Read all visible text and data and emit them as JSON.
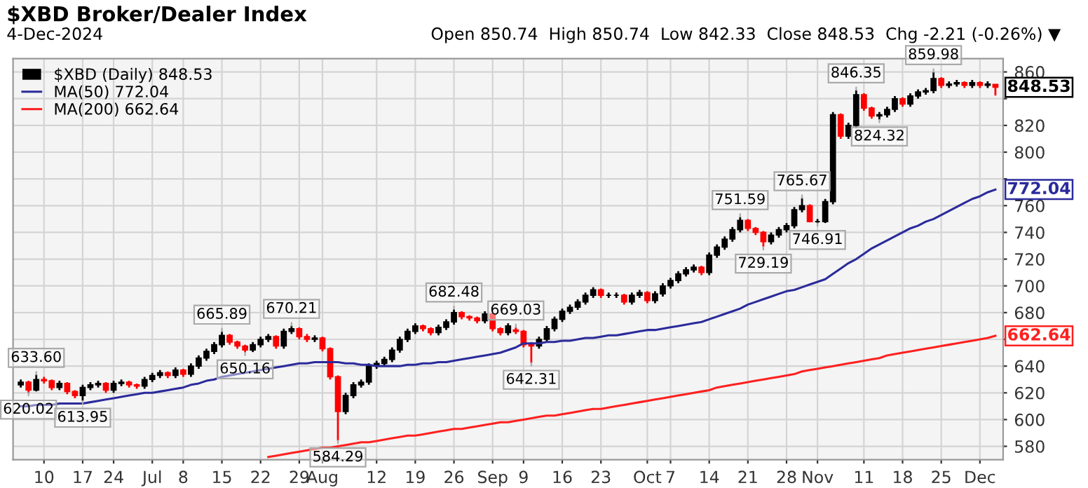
{
  "chart_data": {
    "type": "candlestick",
    "title": "$XBD Broker/Dealer Index",
    "subtitle": "4-Dec-2024",
    "categories": [
      null,
      null,
      null,
      "10",
      null,
      null,
      null,
      null,
      "17",
      null,
      null,
      null,
      "24",
      null,
      null,
      null,
      null,
      "Jul",
      null,
      null,
      null,
      "8",
      null,
      null,
      null,
      null,
      "15",
      null,
      null,
      null,
      null,
      "22",
      null,
      null,
      null,
      null,
      "29",
      null,
      null,
      "Aug",
      null,
      null,
      null,
      null,
      null,
      null,
      "12",
      null,
      null,
      null,
      null,
      "19",
      null,
      null,
      null,
      null,
      "26",
      null,
      null,
      null,
      null,
      "Sep",
      null,
      null,
      null,
      "9",
      null,
      null,
      null,
      null,
      "16",
      null,
      null,
      null,
      null,
      "23",
      null,
      null,
      null,
      null,
      null,
      "Oct",
      null,
      null,
      "7",
      null,
      null,
      null,
      null,
      "14",
      null,
      null,
      null,
      null,
      "21",
      null,
      null,
      null,
      null,
      "28",
      null,
      null,
      null,
      "Nov",
      null,
      null,
      null,
      null,
      null,
      "11",
      null,
      null,
      null,
      null,
      "18",
      null,
      null,
      null,
      null,
      "25",
      null,
      null,
      null,
      null,
      "Dec",
      null,
      null
    ],
    "series": [
      {
        "name": "$XBD (Daily) 848.53",
        "color": "#000000",
        "value_labels": [
          null,
          null,
          null,
          null,
          null,
          null,
          null,
          null,
          null,
          null,
          null,
          null,
          null,
          null,
          null,
          null,
          null,
          null,
          null,
          null,
          null,
          null,
          null,
          null,
          null,
          null,
          null,
          null,
          null,
          null,
          null,
          null,
          null,
          null,
          null,
          null,
          null,
          null,
          null,
          null,
          null,
          null,
          null,
          null,
          null,
          null,
          null,
          null,
          null,
          null,
          null,
          null,
          null,
          null,
          null,
          null,
          null,
          null,
          null,
          null,
          null,
          null,
          null,
          null,
          null,
          null,
          null,
          null,
          null,
          null,
          null,
          null,
          null,
          null,
          null,
          null,
          null,
          null,
          null,
          null,
          null,
          null,
          null,
          null,
          null,
          null,
          null,
          null,
          null,
          null,
          null,
          null,
          null,
          null,
          null,
          null,
          null,
          null,
          null,
          null,
          null,
          null,
          null,
          null,
          null,
          null,
          null,
          null,
          null,
          null,
          null,
          null,
          null,
          null,
          null,
          null,
          null,
          null,
          null,
          null,
          null,
          null,
          null,
          null,
          null,
          null,
          "848.53"
        ],
        "ohlc": [
          [
            626,
            630,
            624,
            628
          ],
          [
            628,
            629,
            620.02,
            622
          ],
          [
            622,
            633.6,
            621,
            630
          ],
          [
            630,
            632,
            627,
            629
          ],
          [
            629,
            630,
            622,
            624
          ],
          [
            624,
            629,
            622,
            627
          ],
          [
            627,
            628,
            619,
            621
          ],
          [
            621,
            622,
            616,
            618
          ],
          [
            618,
            626,
            613.95,
            624
          ],
          [
            624,
            628,
            622,
            626
          ],
          [
            626,
            629,
            624,
            627
          ],
          [
            627,
            628,
            620,
            622
          ],
          [
            622,
            629,
            620,
            627
          ],
          [
            627,
            630,
            625,
            628
          ],
          [
            628,
            629,
            624,
            626
          ],
          [
            626,
            627,
            623,
            625
          ],
          [
            625,
            632,
            623,
            630
          ],
          [
            630,
            635,
            628,
            633
          ],
          [
            633,
            637,
            631,
            635
          ],
          [
            635,
            636,
            631,
            633
          ],
          [
            633,
            639,
            631,
            637
          ],
          [
            637,
            638,
            632,
            634
          ],
          [
            634,
            642,
            632,
            640
          ],
          [
            640,
            648,
            638,
            646
          ],
          [
            646,
            653,
            644,
            651
          ],
          [
            651,
            658,
            649,
            656
          ],
          [
            656,
            665.89,
            654,
            663
          ],
          [
            663,
            664,
            656,
            658
          ],
          [
            658,
            659,
            653,
            655
          ],
          [
            655,
            656,
            650.16,
            652
          ],
          [
            652,
            658,
            650.5,
            656
          ],
          [
            656,
            662,
            654,
            660
          ],
          [
            660,
            664,
            658,
            662
          ],
          [
            662,
            663,
            653,
            655
          ],
          [
            655,
            668,
            653,
            666
          ],
          [
            666,
            670.21,
            664,
            668
          ],
          [
            668,
            669,
            660,
            662
          ],
          [
            662,
            664,
            658,
            660
          ],
          [
            660,
            663,
            658,
            661
          ],
          [
            661,
            662,
            651,
            653
          ],
          [
            653,
            654,
            630,
            632
          ],
          [
            632,
            633,
            584.29,
            606
          ],
          [
            606,
            620,
            604,
            618
          ],
          [
            618,
            628,
            616,
            626
          ],
          [
            626,
            630,
            624,
            628
          ],
          [
            628,
            642,
            626,
            640
          ],
          [
            640,
            644,
            638,
            642
          ],
          [
            642,
            647,
            640,
            645
          ],
          [
            645,
            654,
            643,
            652
          ],
          [
            652,
            662,
            650,
            660
          ],
          [
            660,
            668,
            658,
            666
          ],
          [
            666,
            672,
            664,
            670
          ],
          [
            670,
            671,
            666,
            668
          ],
          [
            668,
            669,
            663,
            665
          ],
          [
            665,
            671,
            663,
            669
          ],
          [
            669,
            675,
            667,
            673
          ],
          [
            673,
            682.48,
            671,
            680
          ],
          [
            680,
            681,
            675,
            677
          ],
          [
            677,
            678,
            674,
            676
          ],
          [
            676,
            677,
            672,
            674
          ],
          [
            674,
            681,
            672,
            679
          ],
          [
            679,
            680,
            666,
            668
          ],
          [
            668,
            669,
            663,
            665
          ],
          [
            665,
            672,
            663,
            670
          ],
          [
            667,
            669.03,
            664,
            666
          ],
          [
            666,
            667,
            654,
            656
          ],
          [
            656,
            658,
            642.31,
            655
          ],
          [
            655,
            662,
            653,
            660
          ],
          [
            660,
            670,
            658,
            668
          ],
          [
            668,
            677,
            666,
            675
          ],
          [
            675,
            683,
            673,
            681
          ],
          [
            681,
            686,
            679,
            684
          ],
          [
            684,
            690,
            682,
            688
          ],
          [
            688,
            695,
            686,
            693
          ],
          [
            693,
            699,
            691,
            697
          ],
          [
            697,
            698,
            691,
            693
          ],
          [
            693,
            695,
            691,
            693
          ],
          [
            693,
            695,
            691,
            693
          ],
          [
            693,
            694,
            686,
            688
          ],
          [
            688,
            695,
            686,
            693
          ],
          [
            693,
            697,
            691,
            695
          ],
          [
            695,
            696,
            687,
            689
          ],
          [
            689,
            696,
            687,
            694
          ],
          [
            694,
            702,
            692,
            700
          ],
          [
            700,
            706,
            698,
            704
          ],
          [
            704,
            711,
            702,
            709
          ],
          [
            709,
            714,
            707,
            712
          ],
          [
            712,
            716,
            710,
            714
          ],
          [
            714,
            715,
            708,
            710
          ],
          [
            710,
            725,
            708,
            723
          ],
          [
            723,
            731,
            721,
            729
          ],
          [
            729,
            737,
            727,
            735
          ],
          [
            735,
            744,
            733,
            742
          ],
          [
            742,
            751.59,
            740,
            749
          ],
          [
            749,
            750,
            741,
            743
          ],
          [
            743,
            744,
            738,
            740
          ],
          [
            740,
            741,
            729.19,
            733
          ],
          [
            733,
            740,
            731,
            738
          ],
          [
            738,
            744,
            736,
            742
          ],
          [
            742,
            747,
            740,
            745
          ],
          [
            745,
            759,
            743,
            757
          ],
          [
            757,
            765.67,
            755,
            760
          ],
          [
            760,
            761,
            747.5,
            748
          ],
          [
            748,
            750,
            746.91,
            748
          ],
          [
            748,
            765,
            747,
            763
          ],
          [
            763,
            830,
            761,
            828
          ],
          [
            828,
            829,
            810,
            812
          ],
          [
            812,
            822,
            810,
            820
          ],
          [
            820,
            846.35,
            818,
            843
          ],
          [
            843,
            844,
            831,
            833
          ],
          [
            833,
            834,
            825,
            827
          ],
          [
            827,
            830,
            824.32,
            828
          ],
          [
            828,
            834,
            826,
            832
          ],
          [
            832,
            842,
            830,
            840
          ],
          [
            840,
            841,
            834,
            836
          ],
          [
            836,
            844,
            834,
            842
          ],
          [
            842,
            847,
            840,
            845
          ],
          [
            845,
            848,
            843,
            846
          ],
          [
            846,
            859.98,
            844,
            855
          ],
          [
            855,
            856,
            848,
            850
          ],
          [
            850,
            853,
            848,
            851
          ],
          [
            851,
            854,
            849,
            852
          ],
          [
            852,
            853,
            848,
            850
          ],
          [
            850,
            854,
            848,
            852
          ],
          [
            852,
            853,
            848,
            850
          ],
          [
            850,
            853,
            848,
            851
          ],
          [
            850.74,
            850.74,
            842.33,
            848.53
          ]
        ],
        "colors": [
          "#000000",
          "#ff0000",
          "#000000",
          "#ff0000",
          "#ff0000",
          "#000000",
          "#ff0000",
          "#ff0000",
          "#000000",
          "#000000",
          "#000000",
          "#ff0000",
          "#000000",
          "#000000",
          "#ff0000",
          "#ff0000",
          "#000000",
          "#000000",
          "#000000",
          "#ff0000",
          "#000000",
          "#ff0000",
          "#000000",
          "#000000",
          "#000000",
          "#000000",
          "#000000",
          "#ff0000",
          "#ff0000",
          "#ff0000",
          "#000000",
          "#000000",
          "#000000",
          "#ff0000",
          "#000000",
          "#000000",
          "#ff0000",
          "#ff0000",
          "#000000",
          "#ff0000",
          "#ff0000",
          "#ff0000",
          "#000000",
          "#000000",
          "#000000",
          "#000000",
          "#000000",
          "#000000",
          "#000000",
          "#000000",
          "#000000",
          "#000000",
          "#ff0000",
          "#ff0000",
          "#000000",
          "#000000",
          "#000000",
          "#ff0000",
          "#ff0000",
          "#ff0000",
          "#000000",
          "#ff0000",
          "#ff0000",
          "#000000",
          "#ff0000",
          "#ff0000",
          "#ff0000",
          "#000000",
          "#000000",
          "#000000",
          "#000000",
          "#000000",
          "#000000",
          "#000000",
          "#000000",
          "#ff0000",
          "#000000",
          "#000000",
          "#ff0000",
          "#000000",
          "#000000",
          "#ff0000",
          "#000000",
          "#000000",
          "#000000",
          "#000000",
          "#000000",
          "#000000",
          "#ff0000",
          "#000000",
          "#000000",
          "#000000",
          "#000000",
          "#000000",
          "#ff0000",
          "#ff0000",
          "#ff0000",
          "#000000",
          "#000000",
          "#000000",
          "#000000",
          "#000000",
          "#ff0000",
          "#000000",
          "#000000",
          "#000000",
          "#ff0000",
          "#000000",
          "#000000",
          "#ff0000",
          "#ff0000",
          "#000000",
          "#000000",
          "#000000",
          "#ff0000",
          "#000000",
          "#000000",
          "#000000",
          "#000000",
          "#ff0000",
          "#000000",
          "#000000",
          "#ff0000",
          "#000000",
          "#ff0000",
          "#000000",
          "#ff0000"
        ]
      },
      {
        "name": "MA(50) 772.04",
        "type": "line",
        "color": "#2b2b9c",
        "value_labels": [
          null,
          null,
          null,
          null,
          null,
          null,
          null,
          null,
          null,
          null,
          null,
          null,
          null,
          null,
          null,
          null,
          null,
          null,
          null,
          null,
          null,
          null,
          null,
          null,
          null,
          null,
          null,
          null,
          null,
          null,
          null,
          null,
          null,
          null,
          null,
          null,
          null,
          null,
          null,
          null,
          null,
          null,
          null,
          null,
          null,
          null,
          null,
          null,
          null,
          null,
          null,
          null,
          null,
          null,
          null,
          null,
          null,
          null,
          null,
          null,
          null,
          null,
          null,
          null,
          null,
          null,
          null,
          null,
          null,
          null,
          null,
          null,
          null,
          null,
          null,
          null,
          null,
          null,
          null,
          null,
          null,
          null,
          null,
          null,
          null,
          null,
          null,
          null,
          null,
          null,
          null,
          null,
          null,
          null,
          null,
          null,
          null,
          null,
          null,
          null,
          null,
          null,
          null,
          null,
          null,
          null,
          null,
          null,
          null,
          null,
          null,
          null,
          null,
          null,
          null,
          null,
          null,
          null,
          null,
          null,
          null,
          null,
          null,
          null,
          null,
          null,
          "772.04"
        ],
        "values": [
          610,
          610,
          611,
          611,
          611,
          612,
          612,
          612,
          612,
          613,
          614,
          615,
          616,
          617,
          618,
          619,
          620,
          620,
          621,
          622,
          623,
          624,
          626,
          627,
          629,
          630,
          632,
          633,
          634,
          635,
          636,
          637,
          638,
          639,
          640,
          641,
          642,
          642,
          643,
          643,
          643,
          643,
          642,
          642,
          641,
          641,
          640,
          640,
          640,
          640,
          641,
          641,
          642,
          642,
          643,
          643,
          644,
          645,
          646,
          647,
          648,
          649,
          650,
          652,
          654,
          657,
          657,
          657,
          658,
          658,
          659,
          659,
          660,
          661,
          661,
          662,
          663,
          663,
          664,
          665,
          666,
          667,
          667,
          668,
          669,
          670,
          671,
          672,
          673,
          675,
          677,
          679,
          681,
          683,
          686,
          688,
          690,
          692,
          694,
          696,
          697,
          699,
          701,
          703,
          705,
          709,
          713,
          717,
          720,
          724,
          728,
          731,
          734,
          737,
          740,
          743,
          745,
          748,
          750,
          753,
          756,
          759,
          762,
          765,
          767,
          770,
          772.04
        ]
      },
      {
        "name": "MA(200) 662.64",
        "type": "line",
        "color": "#ff2020",
        "value_labels": [
          null,
          null,
          null,
          null,
          null,
          null,
          null,
          null,
          null,
          null,
          null,
          null,
          null,
          null,
          null,
          null,
          null,
          null,
          null,
          null,
          null,
          null,
          null,
          null,
          null,
          null,
          null,
          null,
          null,
          null,
          null,
          null,
          null,
          null,
          null,
          null,
          null,
          null,
          null,
          null,
          null,
          null,
          null,
          null,
          null,
          null,
          null,
          null,
          null,
          null,
          null,
          null,
          null,
          null,
          null,
          null,
          null,
          null,
          null,
          null,
          null,
          null,
          null,
          null,
          null,
          null,
          null,
          null,
          null,
          null,
          null,
          null,
          null,
          null,
          null,
          null,
          null,
          null,
          null,
          null,
          null,
          null,
          null,
          null,
          null,
          null,
          null,
          null,
          null,
          null,
          null,
          null,
          null,
          null,
          null,
          null,
          null,
          null,
          null,
          null,
          null,
          null,
          null,
          null,
          null,
          null,
          null,
          null,
          null,
          null,
          null,
          null,
          null,
          null,
          null,
          null,
          null,
          null,
          null,
          null,
          null,
          null,
          null,
          null,
          null,
          null,
          "662.64"
        ],
        "values": [
          null,
          null,
          null,
          null,
          null,
          null,
          null,
          null,
          null,
          null,
          null,
          null,
          null,
          null,
          null,
          null,
          null,
          null,
          null,
          null,
          null,
          null,
          null,
          null,
          null,
          null,
          null,
          null,
          null,
          null,
          null,
          null,
          572,
          573,
          574,
          575,
          576,
          577,
          578,
          579,
          579,
          580,
          581,
          582,
          583,
          583,
          584,
          585,
          586,
          587,
          588,
          588,
          589,
          590,
          591,
          592,
          593,
          593,
          594,
          595,
          596,
          597,
          598,
          598,
          599,
          600,
          601,
          602,
          603,
          603,
          604,
          605,
          606,
          607,
          608,
          608,
          609,
          610,
          611,
          612,
          613,
          614,
          615,
          616,
          617,
          618,
          619,
          620,
          621,
          622,
          624,
          625,
          626,
          627,
          628,
          629,
          630,
          631,
          632,
          633,
          634,
          636,
          637,
          638,
          639,
          640,
          641,
          642,
          643,
          644,
          645,
          646,
          648,
          649,
          650,
          651,
          652,
          653,
          654,
          655,
          656,
          657,
          658,
          659,
          660,
          661,
          662.64
        ]
      }
    ],
    "ylim": [
      570,
      870
    ],
    "yticks": [
      580,
      600,
      620,
      640,
      {
        "value": 660,
        "label": null
      },
      680,
      700,
      720,
      740,
      760,
      {
        "value": 780,
        "label": null
      },
      800,
      820,
      {
        "value": 840,
        "label": null
      },
      860
    ],
    "grid": true,
    "legend": "top left",
    "annotations": [
      "Open 850.74  High 850.74  Low 842.33  Close 848.53  Chg -2.21 (-0.26%) ▼",
      {
        "text": "633.60",
        "y": 633.6
      },
      {
        "text": "620.02",
        "y": 620.02
      },
      {
        "text": "613.95",
        "y": 613.95
      },
      {
        "text": "665.89",
        "y": 665.89
      },
      {
        "text": "650.16",
        "y": 650.16
      },
      {
        "text": "670.21",
        "y": 670.21
      },
      {
        "text": "584.29",
        "y": 584.29
      },
      {
        "text": "682.48",
        "y": 682.48
      },
      {
        "text": "669.03",
        "y": 669.03
      },
      {
        "text": "642.31",
        "y": 642.31
      },
      {
        "text": "751.59",
        "y": 751.59
      },
      {
        "text": "729.19",
        "y": 729.19
      },
      {
        "text": "765.67",
        "y": 765.67
      },
      {
        "text": "746.91",
        "y": 746.91
      },
      {
        "text": "846.35",
        "y": 846.35
      },
      {
        "text": "824.32",
        "y": 824.32
      },
      {
        "text": "859.98",
        "y": 859.98
      }
    ]
  }
}
